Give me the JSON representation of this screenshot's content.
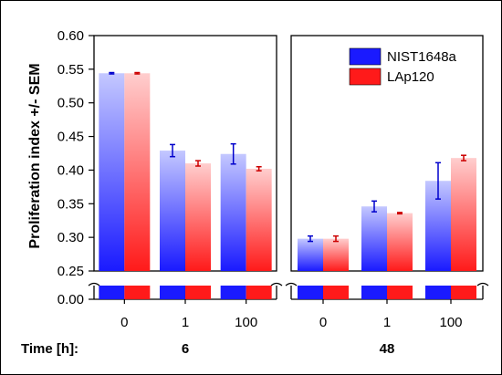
{
  "chart_data": {
    "type": "bar",
    "ylabel": "Proliferation index +/- SEM",
    "xlabel": "Time [h]:",
    "ylim": [
      0.25,
      0.6
    ],
    "yticks": [
      "0.60",
      "0.55",
      "0.50",
      "0.45",
      "0.40",
      "0.35",
      "0.30",
      "0.25"
    ],
    "ybreak_tick": "0.00",
    "legend_position": "top-right",
    "series": [
      {
        "name": "NIST1648a",
        "color": "#1a1aff"
      },
      {
        "name": "LAp120",
        "color": "#ff1a1a"
      }
    ],
    "panels": [
      {
        "group": "6",
        "categories": [
          "0",
          "1",
          "100"
        ],
        "values": [
          [
            0.544,
            0.429,
            0.424
          ],
          [
            0.544,
            0.41,
            0.402
          ]
        ],
        "errors": [
          [
            0.001,
            0.009,
            0.015
          ],
          [
            0.001,
            0.004,
            0.003
          ]
        ]
      },
      {
        "group": "48",
        "categories": [
          "0",
          "1",
          "100"
        ],
        "values": [
          [
            0.298,
            0.346,
            0.384
          ],
          [
            0.298,
            0.336,
            0.418
          ]
        ],
        "errors": [
          [
            0.004,
            0.008,
            0.027
          ],
          [
            0.004,
            0.001,
            0.004
          ]
        ]
      }
    ]
  }
}
